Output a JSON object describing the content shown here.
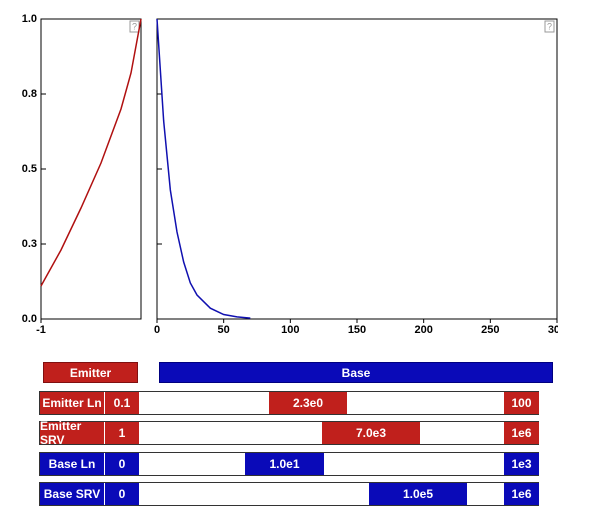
{
  "chart_data": [
    {
      "type": "line",
      "xlim": [
        -1,
        0
      ],
      "ylim": [
        0,
        1
      ],
      "xticks": [
        -1
      ],
      "yticks": [
        {
          "value": 0,
          "label": "0.0"
        },
        {
          "value": 0.25,
          "label": "0.3"
        },
        {
          "value": 0.5,
          "label": "0.5"
        },
        {
          "value": 0.75,
          "label": "0.8"
        },
        {
          "value": 1,
          "label": "1.0"
        }
      ],
      "ytick_labels": true,
      "x": [
        -1,
        -0.8,
        -0.6,
        -0.4,
        -0.2,
        -0.1,
        0
      ],
      "series": [
        {
          "color": "#b01010",
          "values": [
            0.11,
            0.23,
            0.37,
            0.52,
            0.7,
            0.82,
            1.0
          ]
        }
      ]
    },
    {
      "type": "line",
      "xlim": [
        0,
        300
      ],
      "ylim": [
        0,
        1
      ],
      "xticks": [
        0,
        50,
        100,
        150,
        200,
        250,
        300
      ],
      "yticks": [
        0,
        0.25,
        0.5,
        0.75,
        1
      ],
      "ytick_labels": false,
      "x": [
        0,
        5,
        10,
        15,
        20,
        25,
        30,
        40,
        50,
        60,
        70
      ],
      "series": [
        {
          "color": "#1010b0",
          "values": [
            1,
            0.66,
            0.43,
            0.29,
            0.19,
            0.12,
            0.08,
            0.036,
            0.015,
            0.007,
            0.003
          ]
        }
      ]
    }
  ],
  "buttons": [
    "Emitter",
    "Base"
  ],
  "sliders": [
    {
      "label": "Emitter Ln",
      "min": "0.1",
      "value": "2.3e0",
      "max": "100"
    },
    {
      "label": "Emitter SRV",
      "min": "1",
      "value": "7.0e3",
      "max": "1e6"
    },
    {
      "label": "Base Ln",
      "min": "0",
      "value": "1.0e1",
      "max": "1e3"
    },
    {
      "label": "Base SRV",
      "min": "0",
      "value": "1.0e5",
      "max": "1e6"
    }
  ]
}
